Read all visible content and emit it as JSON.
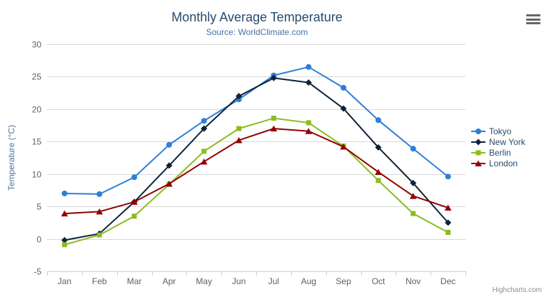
{
  "header": {
    "title": "Monthly Average Temperature",
    "subtitle": "Source: WorldClimate.com"
  },
  "credits": {
    "label": "Highcharts.com"
  },
  "export_menu": {
    "name": "context-menu"
  },
  "colors": {
    "title": "#274b6d",
    "subtitle": "#4572a7",
    "grid": "#d8d8d8",
    "axis_line": "#c0d0e0",
    "axis_label": "#606060",
    "axis_title": "#4d759e",
    "legend_text": "#274b6d"
  },
  "chart_data": {
    "type": "line",
    "title": "Monthly Average Temperature",
    "subtitle": "Source: WorldClimate.com",
    "categories": [
      "Jan",
      "Feb",
      "Mar",
      "Apr",
      "May",
      "Jun",
      "Jul",
      "Aug",
      "Sep",
      "Oct",
      "Nov",
      "Dec"
    ],
    "xlabel": "",
    "ylabel": "Temperature (°C)",
    "ylim": [
      -5,
      30
    ],
    "ytick_interval": 5,
    "grid": true,
    "legend_position": "right",
    "series": [
      {
        "name": "Tokyo",
        "color": "#2f7ed8",
        "marker": "circle",
        "values": [
          7.0,
          6.9,
          9.5,
          14.5,
          18.2,
          21.5,
          25.2,
          26.5,
          23.3,
          18.3,
          13.9,
          9.6
        ]
      },
      {
        "name": "New York",
        "color": "#0d233a",
        "marker": "diamond",
        "values": [
          -0.2,
          0.8,
          5.7,
          11.3,
          17.0,
          22.0,
          24.8,
          24.1,
          20.1,
          14.1,
          8.6,
          2.5
        ]
      },
      {
        "name": "Berlin",
        "color": "#8bbc21",
        "marker": "square",
        "values": [
          -0.9,
          0.6,
          3.5,
          8.4,
          13.5,
          17.0,
          18.6,
          17.9,
          14.3,
          9.0,
          3.9,
          1.0
        ]
      },
      {
        "name": "London",
        "color": "#910000",
        "marker": "triangle",
        "values": [
          3.9,
          4.2,
          5.7,
          8.5,
          11.9,
          15.2,
          17.0,
          16.6,
          14.2,
          10.3,
          6.6,
          4.8
        ]
      }
    ]
  }
}
